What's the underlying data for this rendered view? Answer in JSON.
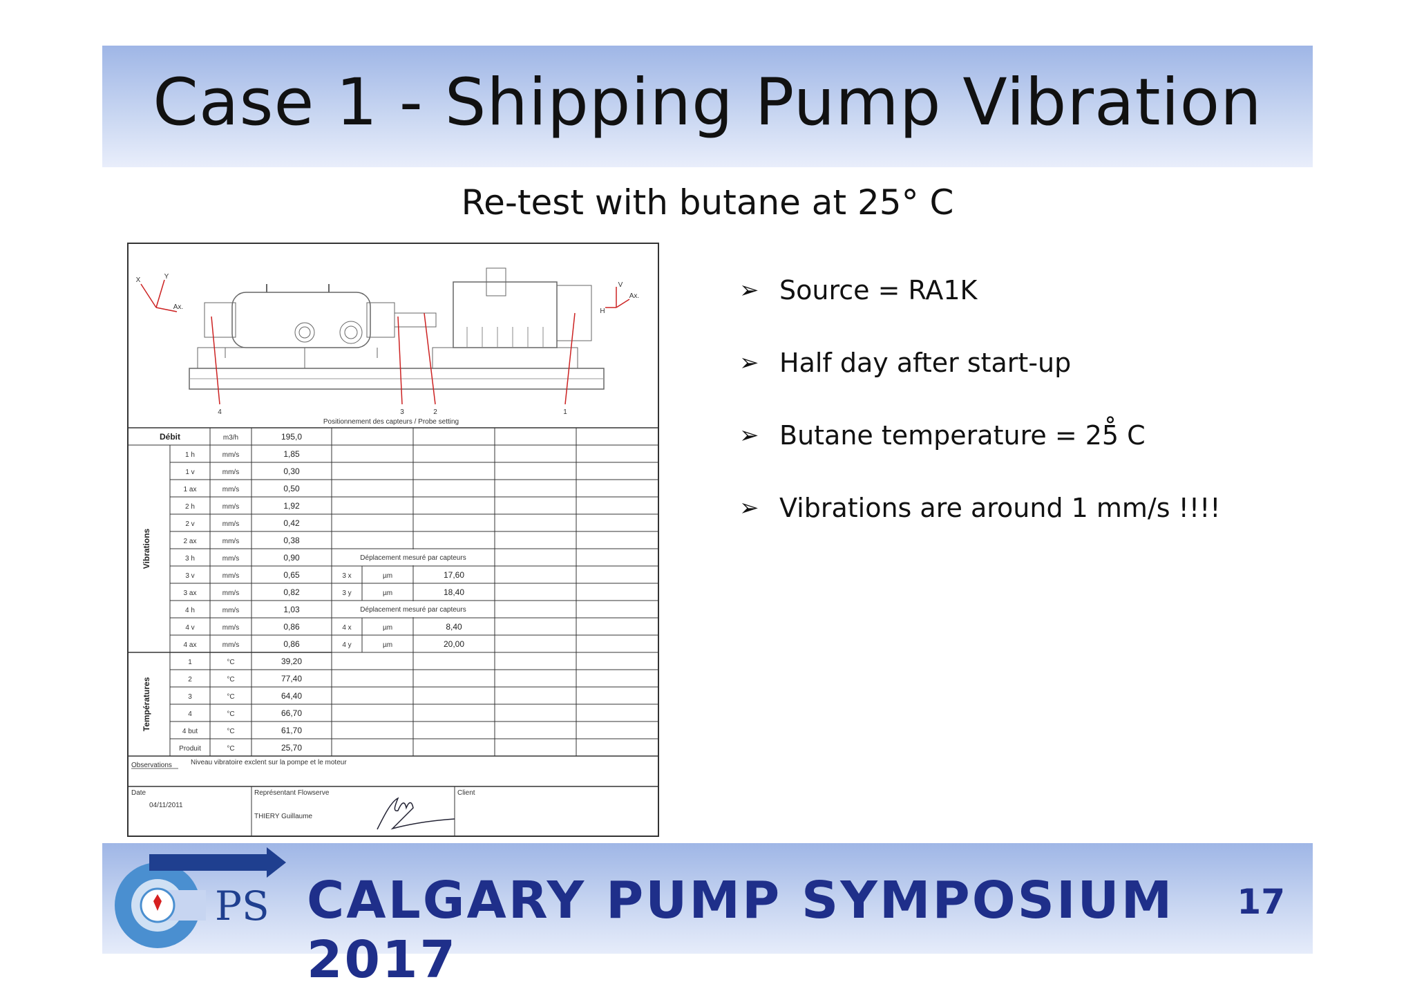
{
  "slide": {
    "title": "Case 1 - Shipping Pump Vibration",
    "subtitle": "Re-test with butane at 25° C",
    "page_number": "17",
    "footer_text": "CALGARY PUMP SYMPOSIUM 2017",
    "logo_letters": "PS"
  },
  "bullets": [
    "Source = RA1K",
    "Half day after start-up",
    "Butane temperature = 25̊ C",
    "Vibrations are around 1 mm/s !!!!"
  ],
  "sheet": {
    "drawing": {
      "caption": "Positionnement des capteurs / Probe setting",
      "axis_left": {
        "x": "X",
        "y": "Y",
        "ax": "Ax."
      },
      "axis_right": {
        "v": "V",
        "h": "H",
        "ax": "Ax."
      },
      "probe_labels": [
        "4",
        "3",
        "2",
        "1"
      ]
    },
    "header_row": {
      "label": "Débit",
      "unit": "m3/h",
      "value": "195,0"
    },
    "group_vibrations": "Vibrations",
    "group_temperatures": "Températures",
    "vib_rows": [
      {
        "pt": "1 h",
        "unit": "mm/s",
        "value": "1,85"
      },
      {
        "pt": "1 v",
        "unit": "mm/s",
        "value": "0,30"
      },
      {
        "pt": "1 ax",
        "unit": "mm/s",
        "value": "0,50"
      },
      {
        "pt": "2 h",
        "unit": "mm/s",
        "value": "1,92"
      },
      {
        "pt": "2 v",
        "unit": "mm/s",
        "value": "0,42"
      },
      {
        "pt": "2 ax",
        "unit": "mm/s",
        "value": "0,38"
      },
      {
        "pt": "3 h",
        "unit": "mm/s",
        "value": "0,90"
      },
      {
        "pt": "3 v",
        "unit": "mm/s",
        "value": "0,65"
      },
      {
        "pt": "3 ax",
        "unit": "mm/s",
        "value": "0,82"
      },
      {
        "pt": "4 h",
        "unit": "mm/s",
        "value": "1,03"
      },
      {
        "pt": "4 v",
        "unit": "mm/s",
        "value": "0,86"
      },
      {
        "pt": "4 ax",
        "unit": "mm/s",
        "value": "0,86"
      }
    ],
    "displacement_header": "Déplacement mesuré par capteurs",
    "displacement": [
      {
        "pt": "3 x",
        "unit": "µm",
        "value": "17,60"
      },
      {
        "pt": "3 y",
        "unit": "µm",
        "value": "18,40"
      },
      {
        "pt": "4 x",
        "unit": "µm",
        "value": "8,40"
      },
      {
        "pt": "4 y",
        "unit": "µm",
        "value": "20,00"
      }
    ],
    "temp_rows": [
      {
        "pt": "1",
        "unit": "°C",
        "value": "39,20"
      },
      {
        "pt": "2",
        "unit": "°C",
        "value": "77,40"
      },
      {
        "pt": "3",
        "unit": "°C",
        "value": "64,40"
      },
      {
        "pt": "4",
        "unit": "°C",
        "value": "66,70"
      },
      {
        "pt": "4 but",
        "unit": "°C",
        "value": "61,70"
      },
      {
        "pt": "Produit",
        "unit": "°C",
        "value": "25,70"
      }
    ],
    "observations_label": "Observations",
    "observations_text": "Niveau vibratoire exclent sur la pompe et le moteur",
    "date_label": "Date",
    "date_value": "04/11/2011",
    "rep_label": "Représentant Flowserve",
    "rep_name": "THIERY Guillaume",
    "client_label": "Client"
  },
  "colors": {
    "band": "#b7c8ee",
    "footer_text": "#1f2f8a",
    "probe_lines": "#cc2222"
  }
}
